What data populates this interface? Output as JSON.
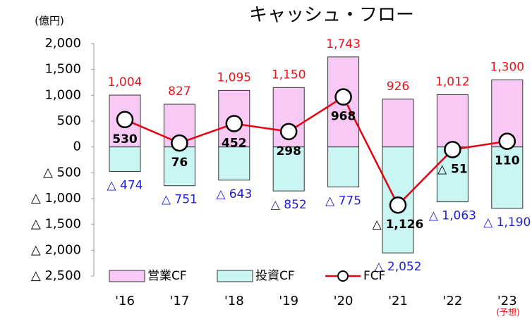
{
  "chart_data": {
    "type": "bar",
    "title": "キャッシュ・フロー",
    "unit_label": "(億円)",
    "categories": [
      "'16",
      "'17",
      "'18",
      "'19",
      "'20",
      "'21",
      "'22",
      "'23"
    ],
    "category_note": "(予想)",
    "ylim": [
      -2500,
      2000
    ],
    "yticks": [
      {
        "value": 2000,
        "label": "2,000"
      },
      {
        "value": 1500,
        "label": "1,500"
      },
      {
        "value": 1000,
        "label": "1,000"
      },
      500,
      0,
      {
        "value": -500,
        "label": "△ 500"
      },
      {
        "value": -1000,
        "label": "△ 1,000"
      },
      {
        "value": -1500,
        "label": "△ 1,500"
      },
      {
        "value": -2000,
        "label": "△ 2,000"
      },
      {
        "value": -2500,
        "label": "△ 2,500"
      }
    ],
    "series": [
      {
        "name": "営業CF",
        "type": "bar",
        "color": "#f9c9f6",
        "label_color": "#e8141b",
        "values": [
          1004,
          827,
          1095,
          1150,
          1743,
          926,
          1012,
          1300
        ],
        "value_labels": [
          "1,004",
          "827",
          "1,095",
          "1,150",
          "1,743",
          "926",
          "1,012",
          "1,300"
        ]
      },
      {
        "name": "投資CF",
        "type": "bar",
        "color": "#c9f5f3",
        "label_color": "#1f1fd6",
        "values": [
          -474,
          -751,
          -643,
          -852,
          -775,
          -2052,
          -1063,
          -1190
        ],
        "value_labels": [
          "△ 474",
          "△ 751",
          "△ 643",
          "△ 852",
          "△ 775",
          "△ 2,052",
          "△ 1,063",
          "△ 1,190"
        ]
      },
      {
        "name": "FCF",
        "type": "line",
        "color": "#e60012",
        "label_color": "#000000",
        "values": [
          530,
          76,
          452,
          298,
          968,
          -1126,
          -51,
          110
        ],
        "value_labels": [
          "530",
          "76",
          "452",
          "298",
          "968",
          "△ 1,126",
          "△ 51",
          "110"
        ]
      }
    ]
  }
}
